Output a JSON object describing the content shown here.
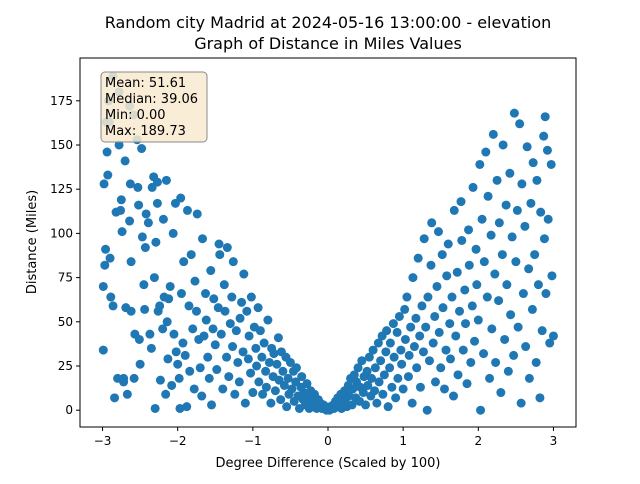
{
  "chart_data": {
    "type": "scatter",
    "title_line1": "Random city Madrid at 2024-05-16 13:00:00  - elevation",
    "title_line2": "Graph of Distance in Miles Values",
    "xlabel": "Degree Difference (Scaled by 100)",
    "ylabel": "Distance (Miles)",
    "xlim": [
      -3.3,
      3.3
    ],
    "ylim": [
      -9.5,
      199.2
    ],
    "xticks": [
      -3,
      -2,
      -1,
      0,
      1,
      2,
      3
    ],
    "yticks": [
      0,
      25,
      50,
      75,
      100,
      125,
      150,
      175
    ],
    "grid": false,
    "marker_color": "#1f77b4",
    "stats": {
      "mean": "Mean: 51.61",
      "median": "Median: 39.06",
      "min": "Min: 0.00",
      "max": "Max: 189.73",
      "placement": "top-left",
      "facecolor": "#f8ead0",
      "edgecolor": "#8a8a8a"
    },
    "points": [
      [
        -2.98,
        128
      ],
      [
        -2.96,
        91
      ],
      [
        -2.97,
        82
      ],
      [
        -2.99,
        70
      ],
      [
        -2.99,
        34
      ],
      [
        -2.92,
        175
      ],
      [
        -2.91,
        163
      ],
      [
        -2.94,
        146
      ],
      [
        -2.93,
        133
      ],
      [
        -2.9,
        86
      ],
      [
        -2.89,
        64
      ],
      [
        -2.86,
        189
      ],
      [
        -2.84,
        7
      ],
      [
        -2.86,
        59
      ],
      [
        -2.82,
        112
      ],
      [
        -2.8,
        18
      ],
      [
        -2.78,
        180
      ],
      [
        -2.78,
        150
      ],
      [
        -2.75,
        119
      ],
      [
        -2.76,
        113
      ],
      [
        -2.74,
        101
      ],
      [
        -2.72,
        16
      ],
      [
        -2.72,
        18
      ],
      [
        -2.7,
        141
      ],
      [
        -2.69,
        58
      ],
      [
        -2.67,
        9
      ],
      [
        -2.64,
        172
      ],
      [
        -2.63,
        128
      ],
      [
        -2.64,
        107
      ],
      [
        -2.62,
        84
      ],
      [
        -2.62,
        56
      ],
      [
        -2.59,
        167
      ],
      [
        -2.58,
        18
      ],
      [
        -2.57,
        43
      ],
      [
        -2.54,
        153
      ],
      [
        -2.53,
        126
      ],
      [
        -2.52,
        116
      ],
      [
        -2.51,
        40
      ],
      [
        -2.5,
        26
      ],
      [
        -2.48,
        148
      ],
      [
        -2.47,
        98
      ],
      [
        -2.45,
        71
      ],
      [
        -2.44,
        57
      ],
      [
        -2.43,
        92
      ],
      [
        -2.42,
        111
      ],
      [
        -2.39,
        106
      ],
      [
        -2.37,
        43
      ],
      [
        -2.35,
        35
      ],
      [
        -2.34,
        126
      ],
      [
        -2.32,
        132
      ],
      [
        -2.31,
        75
      ],
      [
        -2.3,
        1
      ],
      [
        -2.29,
        95
      ],
      [
        -2.27,
        129
      ],
      [
        -2.27,
        117
      ],
      [
        -2.26,
        56
      ],
      [
        -2.24,
        59
      ],
      [
        -2.23,
        17
      ],
      [
        -2.2,
        46
      ],
      [
        -2.19,
        108
      ],
      [
        -2.18,
        64
      ],
      [
        -2.16,
        9
      ],
      [
        -2.15,
        130
      ],
      [
        -2.14,
        50
      ],
      [
        -2.13,
        29
      ],
      [
        -2.12,
        63
      ],
      [
        -2.1,
        70
      ],
      [
        -2.08,
        14
      ],
      [
        -2.06,
        100
      ],
      [
        -2.05,
        43
      ],
      [
        -2.03,
        117
      ],
      [
        -2.02,
        33
      ],
      [
        -2,
        26
      ],
      [
        -1.98,
        18
      ],
      [
        -1.97,
        1
      ],
      [
        -1.96,
        120
      ],
      [
        -1.95,
        66
      ],
      [
        -1.93,
        38
      ],
      [
        -1.92,
        84
      ],
      [
        -1.9,
        31
      ],
      [
        -1.88,
        2
      ],
      [
        -1.87,
        113
      ],
      [
        -1.85,
        59
      ],
      [
        -1.84,
        22
      ],
      [
        -1.82,
        88
      ],
      [
        -1.8,
        46
      ],
      [
        -1.78,
        12
      ],
      [
        -1.77,
        73
      ],
      [
        -1.75,
        56
      ],
      [
        -1.74,
        111
      ],
      [
        -1.72,
        40
      ],
      [
        -1.7,
        24
      ],
      [
        -1.68,
        8
      ],
      [
        -1.67,
        97
      ],
      [
        -1.65,
        42
      ],
      [
        -1.63,
        66
      ],
      [
        -1.62,
        51
      ],
      [
        -1.6,
        30
      ],
      [
        -1.58,
        18
      ],
      [
        -1.56,
        79
      ],
      [
        -1.55,
        3
      ],
      [
        -1.53,
        46
      ],
      [
        -1.52,
        63
      ],
      [
        -1.5,
        37
      ],
      [
        -1.48,
        23
      ],
      [
        -1.46,
        58
      ],
      [
        -1.45,
        94
      ],
      [
        -1.44,
        88
      ],
      [
        -1.42,
        43
      ],
      [
        -1.4,
        12
      ],
      [
        -1.38,
        71
      ],
      [
        -1.37,
        56
      ],
      [
        -1.35,
        30
      ],
      [
        -1.34,
        92
      ],
      [
        -1.32,
        19
      ],
      [
        -1.3,
        49
      ],
      [
        -1.28,
        64
      ],
      [
        -1.27,
        36
      ],
      [
        -1.26,
        84
      ],
      [
        -1.24,
        9
      ],
      [
        -1.22,
        45
      ],
      [
        -1.2,
        27
      ],
      [
        -1.18,
        16
      ],
      [
        -1.17,
        52
      ],
      [
        -1.15,
        61
      ],
      [
        -1.13,
        33
      ],
      [
        -1.12,
        77
      ],
      [
        -1.1,
        4
      ],
      [
        -1.08,
        56
      ],
      [
        -1.06,
        29
      ],
      [
        -1.05,
        42
      ],
      [
        -1.03,
        21
      ],
      [
        -1.02,
        64
      ],
      [
        -1,
        10
      ],
      [
        -0.98,
        47
      ],
      [
        -0.96,
        35
      ],
      [
        -0.95,
        25
      ],
      [
        -0.93,
        58
      ],
      [
        -0.92,
        16
      ],
      [
        -0.9,
        45
      ],
      [
        -0.88,
        30
      ],
      [
        -0.87,
        9
      ],
      [
        -0.85,
        38
      ],
      [
        -0.83,
        22
      ],
      [
        -0.82,
        13
      ],
      [
        -0.8,
        51
      ],
      [
        -0.78,
        27
      ],
      [
        -0.76,
        4
      ],
      [
        -0.75,
        35
      ],
      [
        -0.73,
        19
      ],
      [
        -0.72,
        32
      ],
      [
        -0.7,
        11
      ],
      [
        -0.68,
        26
      ],
      [
        -0.66,
        41
      ],
      [
        -0.65,
        17
      ],
      [
        -0.63,
        6
      ],
      [
        -0.62,
        33
      ],
      [
        -0.6,
        22
      ],
      [
        -0.58,
        14
      ],
      [
        -0.56,
        30
      ],
      [
        -0.55,
        2
      ],
      [
        -0.53,
        18
      ],
      [
        -0.52,
        9
      ],
      [
        -0.5,
        27
      ],
      [
        -0.48,
        12
      ],
      [
        -0.46,
        22
      ],
      [
        -0.45,
        5
      ],
      [
        -0.43,
        16
      ],
      [
        -0.42,
        24
      ],
      [
        -0.4,
        8
      ],
      [
        -0.38,
        1
      ],
      [
        -0.36,
        13
      ],
      [
        -0.35,
        19
      ],
      [
        -0.33,
        6
      ],
      [
        -0.32,
        10
      ],
      [
        -0.3,
        3
      ],
      [
        -0.28,
        15
      ],
      [
        -0.26,
        8
      ],
      [
        -0.25,
        1
      ],
      [
        -0.23,
        11
      ],
      [
        -0.22,
        5
      ],
      [
        -0.2,
        2
      ],
      [
        -0.18,
        9
      ],
      [
        -0.16,
        4
      ],
      [
        -0.15,
        1
      ],
      [
        -0.13,
        6
      ],
      [
        -0.12,
        2
      ],
      [
        -0.1,
        4
      ],
      [
        -0.08,
        1
      ],
      [
        -0.06,
        3
      ],
      [
        -0.05,
        1
      ],
      [
        -0.03,
        2
      ],
      [
        -0.02,
        0
      ],
      [
        0,
        1
      ],
      [
        0.02,
        0
      ],
      [
        0.03,
        2
      ],
      [
        0.05,
        1
      ],
      [
        0.07,
        3
      ],
      [
        0.08,
        1
      ],
      [
        0.1,
        5
      ],
      [
        0.12,
        2
      ],
      [
        0.13,
        7
      ],
      [
        0.15,
        3
      ],
      [
        0.17,
        9
      ],
      [
        0.18,
        1
      ],
      [
        0.2,
        4
      ],
      [
        0.22,
        11
      ],
      [
        0.23,
        6
      ],
      [
        0.25,
        2
      ],
      [
        0.27,
        14
      ],
      [
        0.28,
        8
      ],
      [
        0.3,
        18
      ],
      [
        0.32,
        3
      ],
      [
        0.33,
        12
      ],
      [
        0.35,
        20
      ],
      [
        0.37,
        7
      ],
      [
        0.38,
        16
      ],
      [
        0.4,
        24
      ],
      [
        0.42,
        5
      ],
      [
        0.43,
        13
      ],
      [
        0.45,
        28
      ],
      [
        0.47,
        10
      ],
      [
        0.48,
        19
      ],
      [
        0.5,
        3
      ],
      [
        0.52,
        22
      ],
      [
        0.53,
        14
      ],
      [
        0.55,
        30
      ],
      [
        0.57,
        8
      ],
      [
        0.58,
        18
      ],
      [
        0.6,
        34
      ],
      [
        0.62,
        11
      ],
      [
        0.63,
        24
      ],
      [
        0.65,
        4
      ],
      [
        0.67,
        38
      ],
      [
        0.68,
        16
      ],
      [
        0.7,
        28
      ],
      [
        0.72,
        42
      ],
      [
        0.73,
        9
      ],
      [
        0.75,
        20
      ],
      [
        0.77,
        33
      ],
      [
        0.78,
        45
      ],
      [
        0.8,
        2
      ],
      [
        0.82,
        24
      ],
      [
        0.83,
        38
      ],
      [
        0.85,
        13
      ],
      [
        0.87,
        49
      ],
      [
        0.88,
        30
      ],
      [
        0.9,
        7
      ],
      [
        0.92,
        44
      ],
      [
        0.93,
        18
      ],
      [
        0.95,
        53
      ],
      [
        0.97,
        34
      ],
      [
        0.98,
        26
      ],
      [
        1,
        12
      ],
      [
        1.02,
        57
      ],
      [
        1.03,
        40
      ],
      [
        1.05,
        64
      ],
      [
        1.07,
        19
      ],
      [
        1.08,
        31
      ],
      [
        1.1,
        47
      ],
      [
        1.12,
        4
      ],
      [
        1.13,
        75
      ],
      [
        1.15,
        36
      ],
      [
        1.17,
        52
      ],
      [
        1.18,
        24
      ],
      [
        1.2,
        86
      ],
      [
        1.22,
        42
      ],
      [
        1.23,
        13
      ],
      [
        1.25,
        59
      ],
      [
        1.27,
        33
      ],
      [
        1.28,
        97
      ],
      [
        1.3,
        47
      ],
      [
        1.32,
        0
      ],
      [
        1.33,
        64
      ],
      [
        1.35,
        28
      ],
      [
        1.37,
        82
      ],
      [
        1.38,
        106
      ],
      [
        1.4,
        38
      ],
      [
        1.42,
        53
      ],
      [
        1.43,
        16
      ],
      [
        1.45,
        70
      ],
      [
        1.47,
        101
      ],
      [
        1.48,
        44
      ],
      [
        1.5,
        24
      ],
      [
        1.52,
        88
      ],
      [
        1.53,
        58
      ],
      [
        1.55,
        12
      ],
      [
        1.57,
        34
      ],
      [
        1.58,
        76
      ],
      [
        1.6,
        94
      ],
      [
        1.62,
        49
      ],
      [
        1.63,
        29
      ],
      [
        1.65,
        64
      ],
      [
        1.67,
        8
      ],
      [
        1.68,
        113
      ],
      [
        1.7,
        42
      ],
      [
        1.72,
        78
      ],
      [
        1.73,
        20
      ],
      [
        1.75,
        56
      ],
      [
        1.77,
        118
      ],
      [
        1.78,
        96
      ],
      [
        1.8,
        34
      ],
      [
        1.82,
        68
      ],
      [
        1.83,
        49
      ],
      [
        1.85,
        15
      ],
      [
        1.87,
        102
      ],
      [
        1.88,
        82
      ],
      [
        1.9,
        27
      ],
      [
        1.92,
        59
      ],
      [
        1.93,
        126
      ],
      [
        1.95,
        39
      ],
      [
        1.97,
        91
      ],
      [
        1.98,
        71
      ],
      [
        2,
        51
      ],
      [
        2.02,
        139
      ],
      [
        2.03,
        0
      ],
      [
        2.05,
        108
      ],
      [
        2.07,
        32
      ],
      [
        2.08,
        84
      ],
      [
        2.1,
        146
      ],
      [
        2.12,
        64
      ],
      [
        2.13,
        121
      ],
      [
        2.15,
        18
      ],
      [
        2.17,
        99
      ],
      [
        2.18,
        46
      ],
      [
        2.2,
        156
      ],
      [
        2.22,
        77
      ],
      [
        2.23,
        27
      ],
      [
        2.25,
        130
      ],
      [
        2.27,
        62
      ],
      [
        2.28,
        106
      ],
      [
        2.3,
        10
      ],
      [
        2.32,
        88
      ],
      [
        2.33,
        150
      ],
      [
        2.35,
        40
      ],
      [
        2.37,
        116
      ],
      [
        2.38,
        71
      ],
      [
        2.4,
        22
      ],
      [
        2.42,
        134
      ],
      [
        2.43,
        54
      ],
      [
        2.45,
        98
      ],
      [
        2.47,
        31
      ],
      [
        2.48,
        168
      ],
      [
        2.5,
        84
      ],
      [
        2.52,
        113
      ],
      [
        2.53,
        47
      ],
      [
        2.55,
        162
      ],
      [
        2.57,
        4
      ],
      [
        2.58,
        128
      ],
      [
        2.6,
        66
      ],
      [
        2.62,
        104
      ],
      [
        2.63,
        36
      ],
      [
        2.65,
        149
      ],
      [
        2.67,
        80
      ],
      [
        2.68,
        18
      ],
      [
        2.7,
        117
      ],
      [
        2.72,
        57
      ],
      [
        2.73,
        140
      ],
      [
        2.75,
        88
      ],
      [
        2.77,
        27
      ],
      [
        2.78,
        130
      ],
      [
        2.8,
        71
      ],
      [
        2.82,
        7
      ],
      [
        2.83,
        112
      ],
      [
        2.85,
        45
      ],
      [
        2.87,
        155
      ],
      [
        2.88,
        97
      ],
      [
        2.9,
        66
      ],
      [
        2.92,
        147
      ],
      [
        2.93,
        108
      ],
      [
        2.95,
        38
      ],
      [
        2.97,
        139
      ],
      [
        2.98,
        76
      ],
      [
        3,
        42
      ],
      [
        2.89,
        166
      ],
      [
        -2.95,
        163
      ]
    ]
  }
}
